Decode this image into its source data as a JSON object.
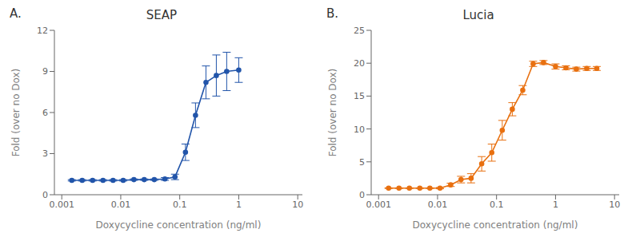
{
  "chart_data": [
    {
      "type": "line",
      "title": "SEAP",
      "annotations": [
        "A."
      ],
      "color": "#2255AA",
      "log": "x",
      "grid": false,
      "marker": "circle",
      "line_style": "solid",
      "x_label": "Doxycycline concentration (ng/ml)",
      "y_label": "Fold (over no Dox)",
      "x": [
        0.00148,
        0.00222,
        0.00333,
        0.005,
        0.0074,
        0.011,
        0.0167,
        0.025,
        0.037,
        0.056,
        0.083,
        0.125,
        0.185,
        0.278,
        0.417,
        0.625,
        1.0
      ],
      "values": [
        1.05,
        1.05,
        1.05,
        1.05,
        1.05,
        1.05,
        1.1,
        1.1,
        1.1,
        1.15,
        1.3,
        3.1,
        5.8,
        8.2,
        8.7,
        9.0,
        9.1
      ],
      "errors": [
        0.05,
        0.05,
        0.05,
        0.05,
        0.05,
        0.05,
        0.05,
        0.05,
        0.05,
        0.1,
        0.2,
        0.6,
        0.9,
        1.2,
        1.5,
        1.4,
        0.9
      ],
      "xlim": [
        0.00075,
        12
      ],
      "xticks": [
        0.001,
        0.01,
        0.1,
        1,
        10
      ],
      "ylim": [
        0,
        12
      ],
      "yticks": [
        0,
        3,
        6,
        9,
        12
      ]
    },
    {
      "type": "line",
      "title": "Lucia",
      "annotations": [
        "B."
      ],
      "color": "#E87010",
      "log": "x",
      "grid": false,
      "marker": "circle",
      "line_style": "solid",
      "x_label": "Doxycycline concentration (ng/ml)",
      "y_label": "Fold (over no Dox)",
      "x": [
        0.00148,
        0.00222,
        0.00333,
        0.005,
        0.0074,
        0.011,
        0.0167,
        0.025,
        0.037,
        0.056,
        0.083,
        0.125,
        0.185,
        0.278,
        0.417,
        0.625,
        1.0,
        1.5,
        2.25,
        3.38,
        5.0
      ],
      "values": [
        1.0,
        1.0,
        1.0,
        1.0,
        1.0,
        1.0,
        1.5,
        2.3,
        2.5,
        4.7,
        6.4,
        9.8,
        13.0,
        15.9,
        19.9,
        20.1,
        19.5,
        19.3,
        19.1,
        19.2,
        19.2
      ],
      "errors": [
        0.05,
        0.05,
        0.05,
        0.05,
        0.05,
        0.1,
        0.25,
        0.5,
        0.7,
        1.1,
        1.3,
        1.5,
        1.0,
        0.7,
        0.4,
        0.3,
        0.4,
        0.3,
        0.3,
        0.3,
        0.3
      ],
      "xlim": [
        0.00075,
        12
      ],
      "xticks": [
        0.001,
        0.01,
        0.1,
        1,
        10
      ],
      "ylim": [
        0,
        25
      ],
      "yticks": [
        0,
        5,
        10,
        15,
        20,
        25
      ]
    }
  ]
}
